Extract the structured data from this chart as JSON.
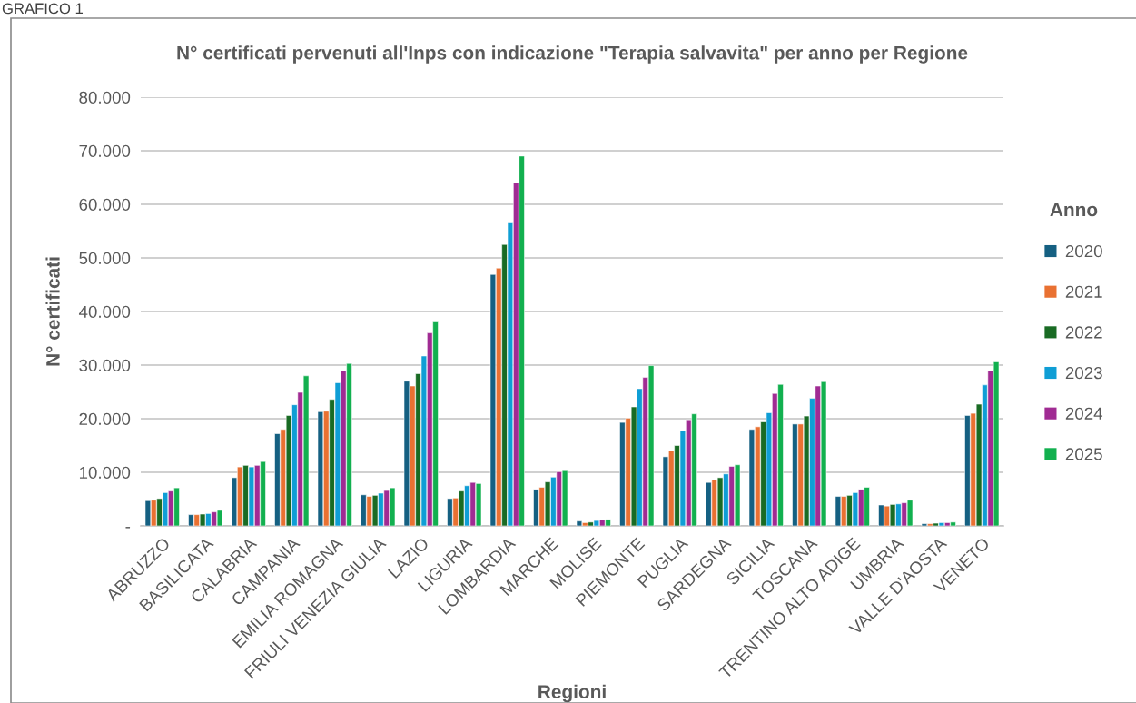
{
  "chart_data": {
    "type": "bar",
    "title": "N° certificati pervenuti all'Inps con indicazione \"Terapia salvavita\" per anno per Regione",
    "xlabel": "Regioni",
    "ylabel": "N° certificati",
    "legend_title": "Anno",
    "annotations": [
      "GRAFICO 1"
    ],
    "categories": [
      "ABRUZZO",
      "BASILICATA",
      "CALABRIA",
      "CAMPANIA",
      "EMILIA ROMAGNA",
      "FRIULI VENEZIA GIULIA",
      "LAZIO",
      "LIGURIA",
      "LOMBARDIA",
      "MARCHE",
      "MOLISE",
      "PIEMONTE",
      "PUGLIA",
      "SARDEGNA",
      "SICILIA",
      "TOSCANA",
      "TRENTINO ALTO ADIGE",
      "UMBRIA",
      "VALLE D'AOSTA",
      "VENETO"
    ],
    "series": [
      {
        "name": "2020",
        "color": "#156082",
        "values": [
          4700,
          2100,
          9000,
          17200,
          21300,
          5800,
          27000,
          5100,
          46900,
          6800,
          900,
          19300,
          12900,
          8100,
          18000,
          19000,
          5500,
          3900,
          400,
          20600
        ]
      },
      {
        "name": "2021",
        "color": "#e97132",
        "values": [
          4800,
          2100,
          11000,
          18000,
          21400,
          5500,
          26100,
          5200,
          48100,
          7200,
          600,
          20100,
          14000,
          8600,
          18500,
          19000,
          5500,
          3700,
          400,
          21000
        ]
      },
      {
        "name": "2022",
        "color": "#196b24",
        "values": [
          5100,
          2200,
          11300,
          20600,
          23600,
          5700,
          28400,
          6500,
          52500,
          8200,
          700,
          22200,
          15000,
          9000,
          19400,
          20500,
          5700,
          4000,
          500,
          22700
        ]
      },
      {
        "name": "2023",
        "color": "#0f9ed5",
        "values": [
          6200,
          2300,
          11000,
          22600,
          26700,
          6100,
          31700,
          7500,
          56700,
          9100,
          1000,
          25600,
          17800,
          9700,
          21100,
          23800,
          6200,
          4100,
          600,
          26300
        ]
      },
      {
        "name": "2024",
        "color": "#a02b93",
        "values": [
          6500,
          2600,
          11300,
          24900,
          29000,
          6600,
          36000,
          8100,
          64000,
          10100,
          1100,
          27700,
          19800,
          11100,
          24700,
          26100,
          6800,
          4300,
          600,
          28900
        ]
      },
      {
        "name": "2025",
        "color": "#12b04f",
        "values": [
          7100,
          2900,
          12000,
          28000,
          30300,
          7100,
          38200,
          7900,
          69000,
          10300,
          1200,
          29900,
          20900,
          11400,
          26400,
          26900,
          7200,
          4800,
          700,
          30600
        ]
      }
    ],
    "ylim": [
      0,
      80000
    ],
    "yticks": [
      {
        "value": 0,
        "label": "-"
      },
      {
        "value": 10000,
        "label": "10.000"
      },
      {
        "value": 20000,
        "label": "20.000"
      },
      {
        "value": 30000,
        "label": "30.000"
      },
      {
        "value": 40000,
        "label": "40.000"
      },
      {
        "value": 50000,
        "label": "50.000"
      },
      {
        "value": 60000,
        "label": "60.000"
      },
      {
        "value": 70000,
        "label": "70.000"
      },
      {
        "value": 80000,
        "label": "80.000"
      }
    ],
    "grid": "y",
    "legend": "right"
  }
}
